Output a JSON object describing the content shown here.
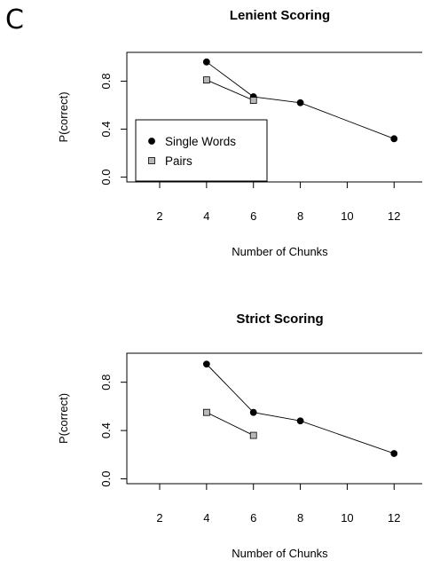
{
  "panel_label": "C",
  "chart_data": [
    {
      "type": "scatter",
      "title": "Lenient Scoring",
      "xlabel": "Number of Chunks",
      "ylabel": "P(correct)",
      "xlim": [
        0.6,
        13.2
      ],
      "ylim": [
        -0.04,
        1.04
      ],
      "xticks": [
        2,
        4,
        6,
        8,
        10,
        12
      ],
      "yticks": [
        0.0,
        0.4,
        0.8
      ],
      "ytick_labels": [
        "0.0",
        "0.4",
        "0.8"
      ],
      "legend": {
        "position": "bottom-left",
        "entries": [
          {
            "label": "Single Words",
            "marker": "circle",
            "color": "#000000"
          },
          {
            "label": "Pairs",
            "marker": "square",
            "color": "#b8b8b8"
          }
        ]
      },
      "series": [
        {
          "name": "Single Words",
          "marker": "circle",
          "color": "#000000",
          "x": [
            4,
            6,
            8,
            12
          ],
          "y": [
            0.96,
            0.67,
            0.62,
            0.32
          ]
        },
        {
          "name": "Pairs",
          "marker": "square",
          "color": "#b8b8b8",
          "x": [
            4,
            6
          ],
          "y": [
            0.81,
            0.64
          ]
        }
      ]
    },
    {
      "type": "scatter",
      "title": "Strict Scoring",
      "xlabel": "Number of Chunks",
      "ylabel": "P(correct)",
      "xlim": [
        0.6,
        13.2
      ],
      "ylim": [
        -0.04,
        1.04
      ],
      "xticks": [
        2,
        4,
        6,
        8,
        10,
        12
      ],
      "yticks": [
        0.0,
        0.4,
        0.8
      ],
      "ytick_labels": [
        "0.0",
        "0.4",
        "0.8"
      ],
      "series": [
        {
          "name": "Single Words",
          "marker": "circle",
          "color": "#000000",
          "x": [
            4,
            6,
            8,
            12
          ],
          "y": [
            0.95,
            0.55,
            0.48,
            0.21
          ]
        },
        {
          "name": "Pairs",
          "marker": "square",
          "color": "#b8b8b8",
          "x": [
            4,
            6
          ],
          "y": [
            0.55,
            0.36
          ]
        }
      ]
    }
  ]
}
